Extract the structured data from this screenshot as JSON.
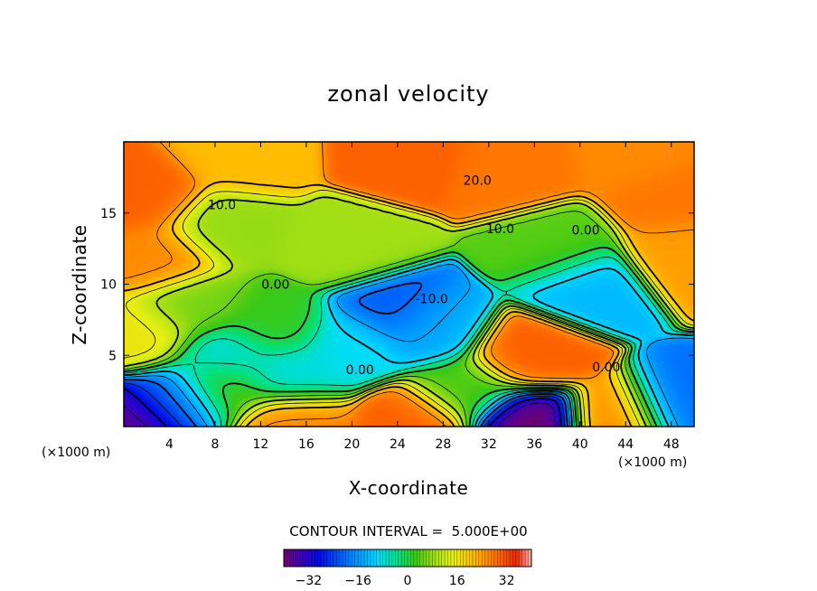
{
  "chart_data": {
    "type": "heatmap",
    "title": "zonal velocity",
    "xlabel": "X-coordinate",
    "ylabel": "Z-coordinate",
    "x_unit": "(×1000 m)",
    "z_unit": "(×1000 m)",
    "xlim": [
      0,
      50
    ],
    "zlim": [
      0,
      20
    ],
    "x_ticks": [
      4,
      8,
      12,
      16,
      20,
      24,
      28,
      32,
      36,
      40,
      44,
      48
    ],
    "z_ticks": [
      5,
      10,
      15
    ],
    "contour_interval_text": "CONTOUR INTERVAL =  5.000E+00",
    "contour_labels": [
      {
        "text": "20.0",
        "x": 31,
        "z": 17.3
      },
      {
        "text": "10.0",
        "x": 8.6,
        "z": 15.6
      },
      {
        "text": "10.0",
        "x": 33,
        "z": 13.9
      },
      {
        "text": "0.00",
        "x": 40.5,
        "z": 13.8
      },
      {
        "text": "0.00",
        "x": 13.3,
        "z": 10.0
      },
      {
        "text": "-10.0",
        "x": 27.0,
        "z": 9.0
      },
      {
        "text": "0.00",
        "x": 20.7,
        "z": 4.0
      },
      {
        "text": "0.00",
        "x": 42.3,
        "z": 4.2
      }
    ],
    "colorbar": {
      "range": [
        -40,
        40
      ],
      "ticks": [
        -32,
        -16,
        0,
        16,
        32
      ]
    },
    "features": [
      {
        "x": 25,
        "z": 19.2,
        "v": 30
      },
      {
        "x": 34,
        "z": 18.2,
        "v": 28
      },
      {
        "x": 45,
        "z": 19.0,
        "v": 26
      },
      {
        "x": 10,
        "z": 19.0,
        "v": 21
      },
      {
        "x": 2,
        "z": 16.2,
        "v": 30
      },
      {
        "x": 48,
        "z": 16.0,
        "v": 28
      },
      {
        "x": 3,
        "z": 11.8,
        "v": 26
      },
      {
        "x": 49,
        "z": 12.3,
        "v": 24
      },
      {
        "x": 1.5,
        "z": 6.5,
        "v": 16
      },
      {
        "x": 8.5,
        "z": 14.0,
        "v": 8
      },
      {
        "x": 23.5,
        "z": 8.2,
        "v": -22
      },
      {
        "x": 27,
        "z": 7.0,
        "v": -14
      },
      {
        "x": 20,
        "z": 5.8,
        "v": -9
      },
      {
        "x": 40.5,
        "z": 10.0,
        "v": -13
      },
      {
        "x": 9,
        "z": 4.8,
        "v": -9
      },
      {
        "x": 14.8,
        "z": 3.7,
        "v": -8
      },
      {
        "x": 35.3,
        "z": 5.0,
        "v": 30
      },
      {
        "x": 25.5,
        "z": 0.2,
        "v": 30
      },
      {
        "x": 15,
        "z": 0.2,
        "v": 26
      },
      {
        "x": 43.5,
        "z": 0.4,
        "v": 26
      },
      {
        "x": 35.3,
        "z": 0.2,
        "v": -40
      },
      {
        "x": 0.5,
        "z": 0.3,
        "v": -38
      },
      {
        "x": 4.5,
        "z": 1.8,
        "v": -22
      },
      {
        "x": 48.5,
        "z": 1.2,
        "v": -20
      },
      {
        "x": 8.5,
        "z": 2.8,
        "v": 5
      },
      {
        "x": 30,
        "z": 2.5,
        "v": 3
      },
      {
        "x": 20,
        "z": 12.5,
        "v": 9
      },
      {
        "x": 38,
        "z": 12.5,
        "v": 4
      },
      {
        "x": 13,
        "z": 7.0,
        "v": 2
      },
      {
        "x": 6,
        "z": 8.5,
        "v": 6
      }
    ]
  }
}
